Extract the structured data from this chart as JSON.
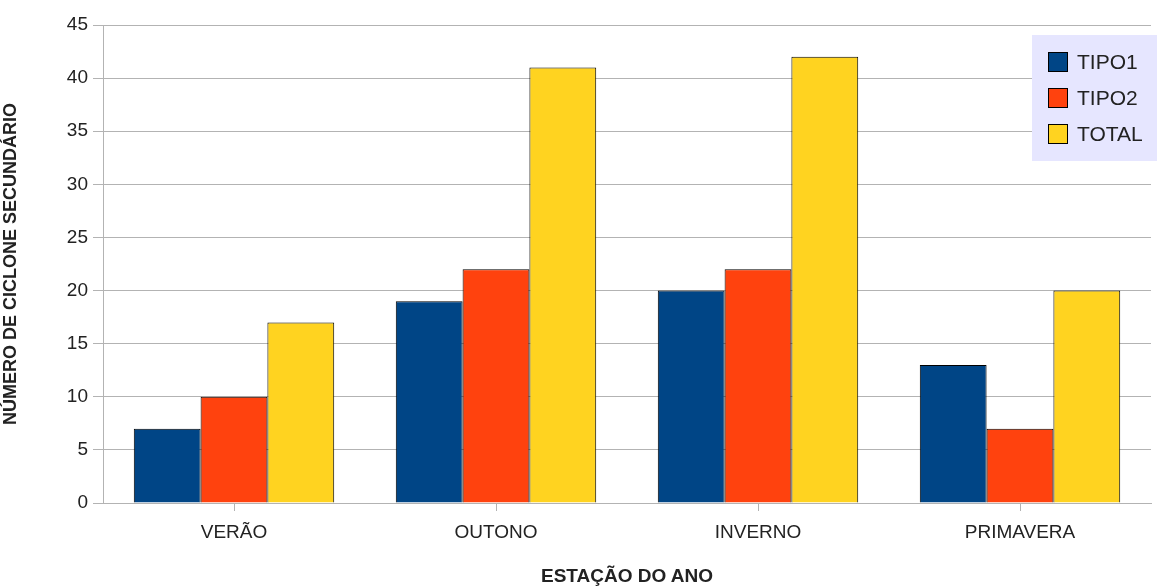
{
  "chart_data": {
    "type": "bar",
    "xlabel": "ESTAÇÃO DO ANO",
    "ylabel": "NÚMERO DE CICLONE SECUNDÁRIO",
    "categories": [
      "VERÃO",
      "OUTONO",
      "INVERNO",
      "PRIMAVERA"
    ],
    "series": [
      {
        "name": "TIPO1",
        "color": "#004586",
        "values": [
          7,
          19,
          20,
          13
        ]
      },
      {
        "name": "TIPO2",
        "color": "#ff420e",
        "values": [
          10,
          22,
          22,
          7
        ]
      },
      {
        "name": "TOTAL",
        "color": "#ffd320",
        "values": [
          17,
          41,
          42,
          20
        ]
      }
    ],
    "ylim": [
      0,
      45
    ],
    "yticks": [
      0,
      5,
      10,
      15,
      20,
      25,
      30,
      35,
      40,
      45
    ],
    "grid": "y",
    "legend": "top right"
  }
}
